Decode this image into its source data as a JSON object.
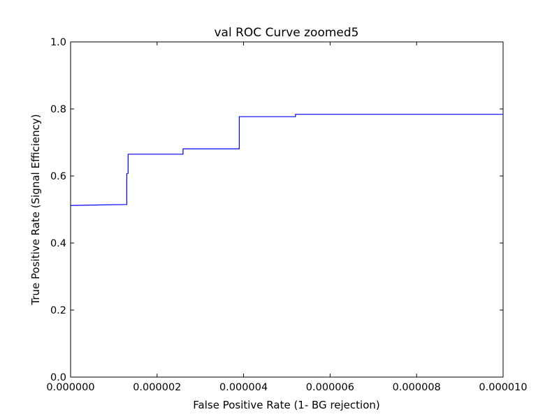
{
  "chart_data": {
    "type": "line",
    "title": "val ROC Curve zoomed5",
    "xlabel": "False Positive Rate (1- BG rejection)",
    "ylabel": "True Positive Rate (Signal Efficiency)",
    "xlim": [
      0,
      1e-05
    ],
    "ylim": [
      0,
      1.0
    ],
    "xticks": [
      0,
      2e-06,
      4e-06,
      6e-06,
      8e-06,
      1e-05
    ],
    "xtick_labels": [
      "0.000000",
      "0.000002",
      "0.000004",
      "0.000006",
      "0.000008",
      "0.000010"
    ],
    "yticks": [
      0,
      0.2,
      0.4,
      0.6,
      0.8,
      1.0
    ],
    "ytick_labels": [
      "0.0",
      "0.2",
      "0.4",
      "0.6",
      "0.8",
      "1.0"
    ],
    "grid": false,
    "series": [
      {
        "color": "#0000ff",
        "x": [
          0,
          1.3e-06,
          1.3e-06,
          1.33e-06,
          1.33e-06,
          2.6e-06,
          2.6e-06,
          3.9e-06,
          3.9e-06,
          5.2e-06,
          5.2e-06,
          1e-05
        ],
        "y": [
          0.512,
          0.515,
          0.607,
          0.608,
          0.665,
          0.665,
          0.681,
          0.681,
          0.777,
          0.777,
          0.784,
          0.784
        ]
      }
    ]
  }
}
